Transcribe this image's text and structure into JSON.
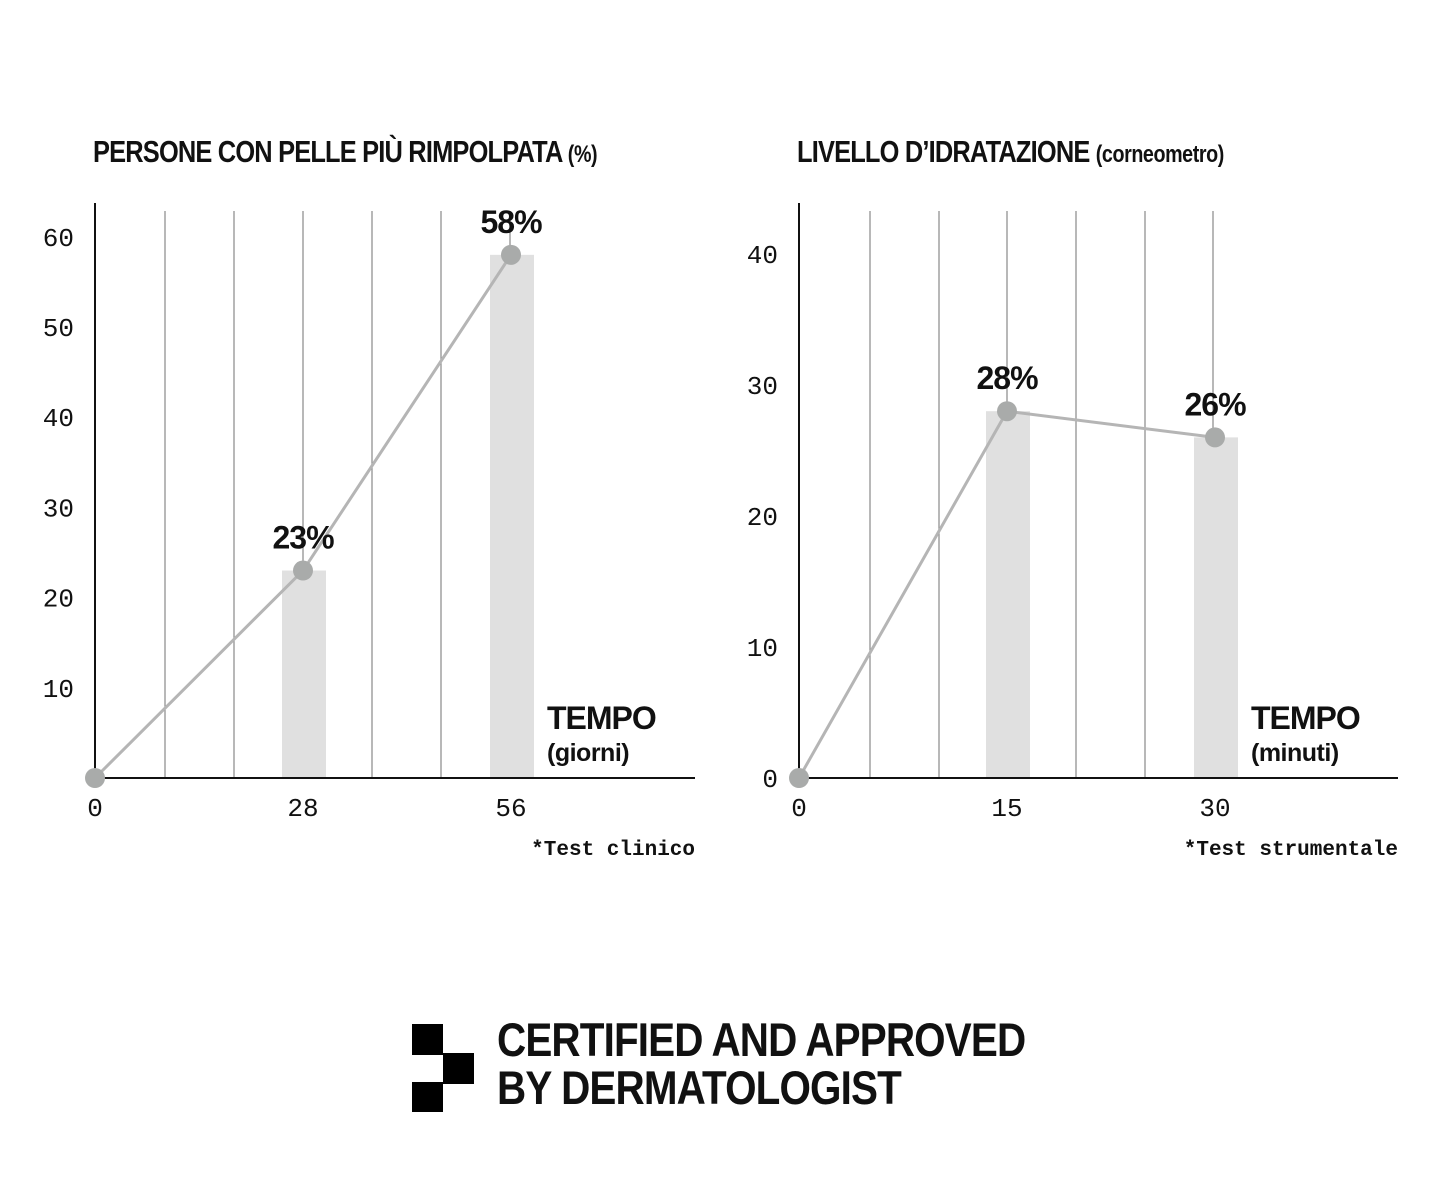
{
  "chart_data": [
    {
      "type": "bar",
      "title": "PERSONE CON PELLE PIÙ RIMPOLPATA",
      "title_unit": "(%)",
      "xlabel": "TEMPO",
      "xlabel_unit": "(giorni)",
      "x": [
        0,
        28,
        56
      ],
      "x_ticks": [
        "0",
        "28",
        "56"
      ],
      "y_ticks": [
        "10",
        "20",
        "30",
        "40",
        "50",
        "60"
      ],
      "ylim": [
        0,
        64
      ],
      "values": [
        0,
        23,
        58
      ],
      "data_labels": [
        "",
        "23%",
        "58%"
      ],
      "line_overlay": true,
      "grid": "vertical",
      "footnote": "*Test clinico",
      "colors": {
        "bar": "#e0e0e0",
        "line": "#b5b5b5",
        "point": "#a9abaa",
        "grid": "#888888",
        "axis": "#111111"
      }
    },
    {
      "type": "bar",
      "title": "LIVELLO D’IDRATAZIONE",
      "title_unit": "(corneometro)",
      "xlabel": "TEMPO",
      "xlabel_unit": "(minuti)",
      "x": [
        0,
        15,
        30
      ],
      "x_ticks": [
        "0",
        "15",
        "30"
      ],
      "y_ticks": [
        "0",
        "10",
        "20",
        "30",
        "40"
      ],
      "ylim": [
        0,
        44
      ],
      "values": [
        0,
        28,
        26
      ],
      "data_labels": [
        "",
        "28%",
        "26%"
      ],
      "line_overlay": true,
      "grid": "vertical",
      "footnote": "*Test strumentale",
      "colors": {
        "bar": "#e0e0e0",
        "line": "#b5b5b5",
        "point": "#a9abaa",
        "grid": "#888888",
        "axis": "#111111"
      }
    }
  ],
  "certification": {
    "line1": "CERTIFIED AND APPROVED",
    "line2": "BY DERMATOLOGIST",
    "icon": "checkered-badge-icon"
  }
}
